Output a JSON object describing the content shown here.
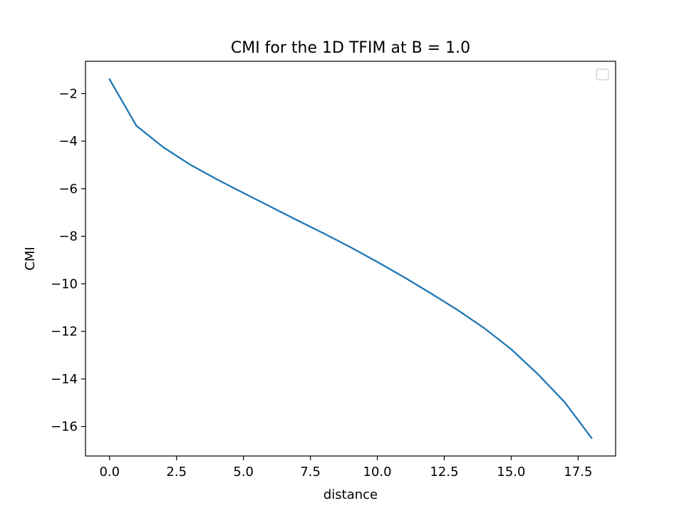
{
  "chart_data": {
    "type": "line",
    "title": "CMI for the 1D TFIM at B = 1.0",
    "xlabel": "distance",
    "ylabel": "CMI",
    "xlim": [
      -0.9,
      18.9
    ],
    "ylim": [
      -17.24,
      -0.64
    ],
    "xticks": [
      0.0,
      2.5,
      5.0,
      7.5,
      10.0,
      12.5,
      15.0,
      17.5
    ],
    "xtick_labels": [
      "0.0",
      "2.5",
      "5.0",
      "7.5",
      "10.0",
      "12.5",
      "15.0",
      "17.5"
    ],
    "yticks": [
      -2,
      -4,
      -6,
      -8,
      -10,
      -12,
      -14,
      -16
    ],
    "ytick_labels": [
      "−2",
      "−4",
      "−6",
      "−8",
      "−10",
      "−12",
      "−14",
      "−16"
    ],
    "grid": false,
    "legend": "top-right, empty",
    "series": [
      {
        "color": "#1f77b4",
        "x": [
          0,
          1,
          2,
          3,
          4,
          5,
          6,
          7,
          8,
          9,
          10,
          11,
          12,
          13,
          14,
          15,
          16,
          17,
          18
        ],
        "y": [
          -1.4,
          -3.35,
          -4.25,
          -4.98,
          -5.6,
          -6.18,
          -6.75,
          -7.32,
          -7.88,
          -8.46,
          -9.08,
          -9.72,
          -10.4,
          -11.1,
          -11.87,
          -12.75,
          -13.8,
          -14.98,
          -16.48
        ]
      }
    ]
  }
}
